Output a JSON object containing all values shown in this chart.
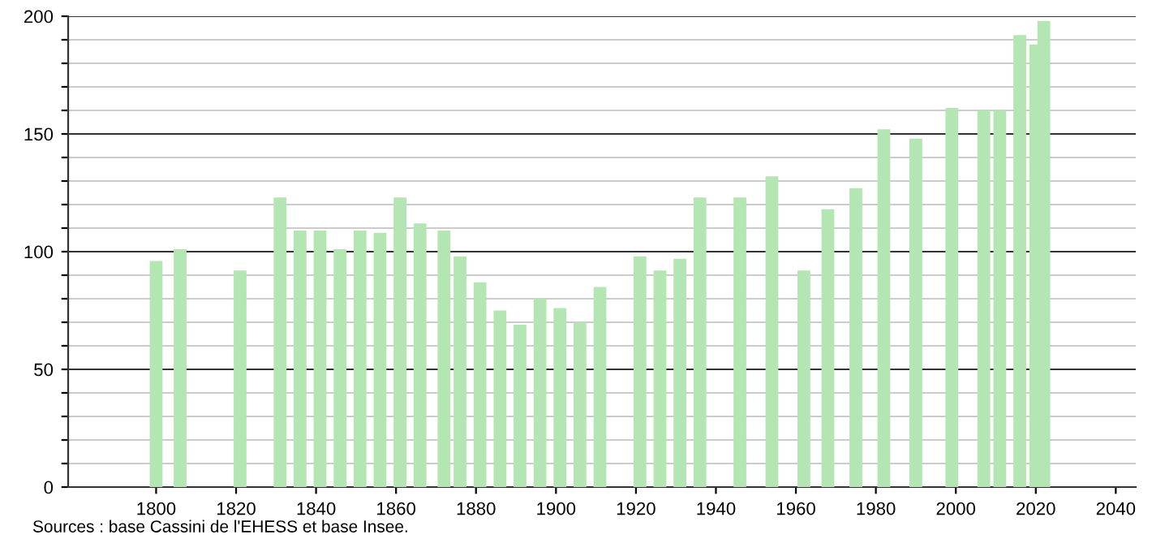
{
  "chart_data": {
    "type": "bar",
    "x": [
      1800,
      1806,
      1821,
      1831,
      1836,
      1841,
      1846,
      1851,
      1856,
      1861,
      1866,
      1872,
      1876,
      1881,
      1886,
      1891,
      1896,
      1901,
      1906,
      1911,
      1921,
      1926,
      1931,
      1936,
      1946,
      1954,
      1962,
      1968,
      1975,
      1982,
      1990,
      1999,
      2007,
      2011,
      2016,
      2020,
      2022
    ],
    "values": [
      96,
      101,
      92,
      123,
      109,
      109,
      101,
      109,
      108,
      123,
      112,
      109,
      98,
      87,
      75,
      69,
      80,
      76,
      70,
      85,
      98,
      92,
      97,
      123,
      123,
      132,
      92,
      118,
      127,
      152,
      148,
      161,
      160,
      160,
      192,
      188,
      198
    ],
    "color": "#b3e6b3",
    "xlim": [
      1778,
      2045
    ],
    "xticks": [
      1800,
      1820,
      1840,
      1860,
      1880,
      1900,
      1920,
      1940,
      1960,
      1980,
      2000,
      2020,
      2040
    ],
    "ylim": [
      0,
      200
    ],
    "yticks": [
      0,
      {
        "value": 10,
        "label": null
      },
      {
        "value": 20,
        "label": null
      },
      {
        "value": 30,
        "label": null
      },
      {
        "value": 40,
        "label": null
      },
      50,
      {
        "value": 60,
        "label": null
      },
      {
        "value": 70,
        "label": null
      },
      {
        "value": 80,
        "label": null
      },
      {
        "value": 90,
        "label": null
      },
      100,
      {
        "value": 110,
        "label": null
      },
      {
        "value": 120,
        "label": null
      },
      {
        "value": 130,
        "label": null
      },
      {
        "value": 140,
        "label": null
      },
      150,
      {
        "value": 160,
        "label": null
      },
      {
        "value": 170,
        "label": null
      },
      {
        "value": 180,
        "label": null
      },
      {
        "value": 190,
        "label": null
      },
      200
    ],
    "grid": "y",
    "annotations": [
      "Sources : base Cassini de l'EHESS et base Insee."
    ]
  }
}
